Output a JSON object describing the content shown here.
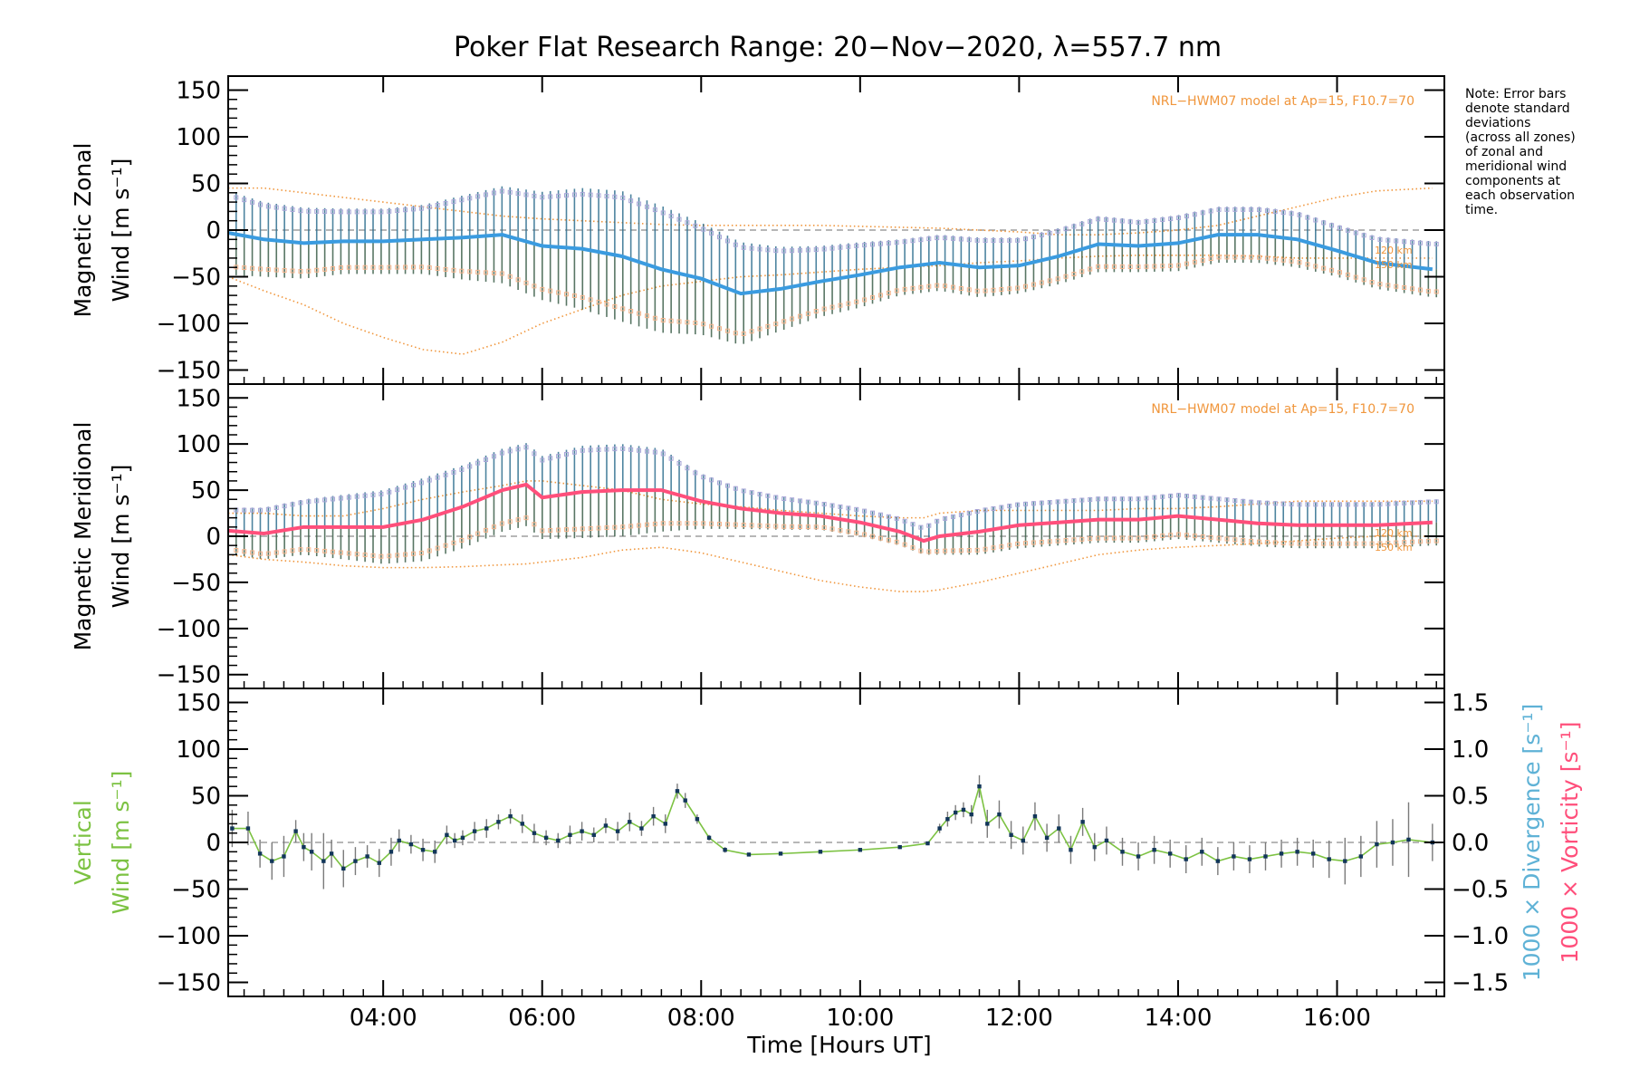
{
  "figure": {
    "title": "Poker Flat Research Range: 20−Nov−2020, λ=557.7 nm",
    "note_lines": [
      "Note: Error bars",
      "denote standard",
      "deviations",
      "(across all zones)",
      "of zonal and",
      "meridional wind",
      "components at",
      "each observation",
      "time."
    ],
    "xlabel": "Time [Hours UT]",
    "x_ticks": [
      "04:00",
      "06:00",
      "08:00",
      "10:00",
      "12:00",
      "14:00",
      "16:00"
    ],
    "x_tick_hours": [
      4,
      6,
      8,
      10,
      12,
      14,
      16
    ],
    "xlim_hours": [
      2.05,
      17.35
    ],
    "y_ticks": [
      "150",
      "100",
      "50",
      "0",
      "−50",
      "−100",
      "−150"
    ],
    "y_tick_values": [
      150,
      100,
      50,
      0,
      -50,
      -100,
      -150
    ],
    "right_ticks": [
      "1.5",
      "1.0",
      "0.5",
      "0.0",
      "−0.5",
      "−1.0",
      "−1.5"
    ],
    "right_tick_values": [
      1.5,
      1.0,
      0.5,
      0.0,
      -0.5,
      -1.0,
      -1.5
    ],
    "model_label": "NRL−HWM07 model at Ap=15, F10.7=70",
    "km_labels": [
      "120 km",
      "150 km"
    ]
  },
  "chart_data": [
    {
      "type": "line",
      "panel": "zonal",
      "ylabel_line1": "Magnetic Zonal",
      "ylabel_line2": "Wind [m s⁻¹]",
      "ylim": [
        -165,
        165
      ],
      "color": "#3a9be0",
      "error_color": "#1e3f6b",
      "x": [
        2.05,
        2.5,
        3.0,
        3.5,
        4.0,
        4.5,
        5.0,
        5.5,
        6.0,
        6.5,
        7.0,
        7.5,
        8.0,
        8.5,
        9.0,
        9.5,
        10.0,
        10.5,
        11.0,
        11.5,
        12.0,
        12.5,
        13.0,
        13.5,
        14.0,
        14.5,
        15.0,
        15.5,
        16.0,
        16.5,
        17.2
      ],
      "y": [
        -3,
        -10,
        -14,
        -12,
        -12,
        -10,
        -8,
        -5,
        -17,
        -20,
        -28,
        -42,
        -52,
        -68,
        -63,
        -55,
        -48,
        -40,
        -35,
        -40,
        -38,
        -28,
        -15,
        -17,
        -14,
        -5,
        -5,
        -10,
        -22,
        -35,
        -42
      ],
      "err": [
        45,
        40,
        38,
        35,
        35,
        37,
        45,
        52,
        58,
        65,
        70,
        68,
        60,
        55,
        45,
        38,
        35,
        30,
        30,
        32,
        30,
        30,
        30,
        28,
        30,
        30,
        30,
        30,
        28,
        28,
        30
      ],
      "model_upper": [
        45,
        45,
        40,
        35,
        30,
        25,
        20,
        15,
        12,
        10,
        8,
        6,
        5,
        5,
        5,
        5,
        4,
        3,
        2,
        0,
        -2,
        -5,
        -5,
        -3,
        0,
        5,
        15,
        25,
        35,
        42,
        45
      ],
      "model_lower": [
        -50,
        -65,
        -80,
        -100,
        -115,
        -128,
        -133,
        -120,
        -100,
        -85,
        -70,
        -60,
        -55,
        -50,
        -48,
        -45,
        -42,
        -40,
        -38,
        -35,
        -33,
        -30,
        -28,
        -27,
        -27,
        -27,
        -28,
        -30,
        -30,
        -30,
        -30
      ]
    },
    {
      "type": "line",
      "panel": "meridional",
      "ylabel_line1": "Magnetic Meridional",
      "ylabel_line2": "Wind [m s⁻¹]",
      "ylim": [
        -165,
        165
      ],
      "color": "#ff4f7b",
      "error_color": "#1e3f6b",
      "x": [
        2.05,
        2.5,
        3.0,
        3.5,
        4.0,
        4.5,
        5.0,
        5.5,
        5.8,
        6.0,
        6.5,
        7.0,
        7.5,
        8.0,
        8.5,
        9.0,
        9.5,
        10.0,
        10.5,
        10.8,
        11.0,
        11.5,
        12.0,
        12.5,
        13.0,
        13.5,
        14.0,
        14.5,
        15.0,
        15.5,
        16.0,
        16.5,
        17.2
      ],
      "y": [
        6,
        3,
        10,
        10,
        10,
        18,
        32,
        50,
        56,
        42,
        48,
        50,
        50,
        38,
        30,
        25,
        22,
        15,
        5,
        -5,
        0,
        5,
        12,
        15,
        18,
        18,
        22,
        18,
        14,
        12,
        12,
        12,
        15
      ],
      "err": [
        25,
        28,
        30,
        35,
        40,
        45,
        45,
        45,
        45,
        45,
        50,
        50,
        45,
        30,
        22,
        18,
        15,
        15,
        15,
        15,
        20,
        25,
        25,
        25,
        25,
        25,
        25,
        25,
        25,
        25,
        25,
        25,
        25
      ],
      "model_upper": [
        25,
        25,
        22,
        22,
        30,
        40,
        48,
        55,
        60,
        60,
        55,
        50,
        40,
        35,
        32,
        28,
        25,
        22,
        20,
        20,
        25,
        28,
        28,
        28,
        28,
        30,
        30,
        32,
        35,
        38,
        38,
        38,
        38
      ],
      "model_lower": [
        -20,
        -25,
        -28,
        -32,
        -34,
        -34,
        -33,
        -31,
        -30,
        -28,
        -23,
        -15,
        -12,
        -18,
        -28,
        -38,
        -48,
        -55,
        -60,
        -60,
        -58,
        -50,
        -40,
        -30,
        -20,
        -15,
        -12,
        -10,
        -8,
        -5,
        -2,
        0,
        0
      ]
    },
    {
      "type": "line",
      "panel": "vertical",
      "ylabel_line1": "Vertical",
      "ylabel_line2": "Wind [m s⁻¹]",
      "right_label_divergence": "1000 × Divergence [s⁻¹]",
      "right_label_vorticity": "1000 × Vorticity [s⁻¹]",
      "ylim": [
        -165,
        165
      ],
      "right_ylim": [
        -1.65,
        1.65
      ],
      "color": "#7cc242",
      "marker_color": "#12365a",
      "x": [
        2.1,
        2.3,
        2.45,
        2.6,
        2.75,
        2.9,
        3.0,
        3.1,
        3.25,
        3.35,
        3.5,
        3.65,
        3.8,
        3.95,
        4.1,
        4.2,
        4.35,
        4.5,
        4.65,
        4.8,
        4.9,
        5.0,
        5.15,
        5.3,
        5.45,
        5.6,
        5.75,
        5.9,
        6.05,
        6.2,
        6.35,
        6.5,
        6.65,
        6.8,
        6.95,
        7.1,
        7.25,
        7.4,
        7.55,
        7.7,
        7.8,
        7.95,
        8.1,
        8.3,
        8.6,
        9.0,
        9.5,
        10.0,
        10.5,
        10.85,
        11.0,
        11.1,
        11.2,
        11.3,
        11.4,
        11.5,
        11.6,
        11.75,
        11.9,
        12.05,
        12.2,
        12.35,
        12.5,
        12.65,
        12.8,
        12.95,
        13.1,
        13.3,
        13.5,
        13.7,
        13.9,
        14.1,
        14.3,
        14.5,
        14.7,
        14.9,
        15.1,
        15.3,
        15.5,
        15.7,
        15.9,
        16.1,
        16.3,
        16.5,
        16.7,
        16.9,
        17.2
      ],
      "y": [
        15,
        15,
        -12,
        -20,
        -15,
        12,
        -5,
        -10,
        -20,
        -12,
        -28,
        -20,
        -15,
        -22,
        -10,
        2,
        -2,
        -8,
        -10,
        8,
        2,
        5,
        12,
        15,
        22,
        28,
        20,
        10,
        5,
        2,
        8,
        12,
        8,
        18,
        12,
        22,
        15,
        28,
        20,
        55,
        45,
        25,
        5,
        -8,
        -13,
        -12,
        -10,
        -8,
        -5,
        -1,
        15,
        25,
        32,
        35,
        30,
        60,
        20,
        30,
        8,
        2,
        28,
        5,
        15,
        -8,
        22,
        -5,
        2,
        -10,
        -15,
        -8,
        -12,
        -18,
        -10,
        -20,
        -15,
        -18,
        -15,
        -12,
        -10,
        -12,
        -18,
        -20,
        -15,
        -2,
        0,
        3,
        0
      ],
      "err": [
        20,
        18,
        15,
        20,
        22,
        12,
        15,
        20,
        30,
        15,
        20,
        15,
        12,
        15,
        15,
        12,
        10,
        12,
        12,
        10,
        8,
        8,
        10,
        10,
        8,
        8,
        10,
        10,
        8,
        8,
        10,
        10,
        8,
        8,
        10,
        10,
        8,
        10,
        10,
        8,
        8,
        5,
        3,
        3,
        2,
        2,
        2,
        2,
        2,
        2,
        5,
        8,
        8,
        8,
        10,
        12,
        15,
        15,
        15,
        15,
        15,
        15,
        15,
        15,
        15,
        15,
        15,
        15,
        15,
        15,
        15,
        15,
        15,
        15,
        15,
        15,
        15,
        15,
        15,
        15,
        20,
        25,
        22,
        25,
        25,
        40,
        20
      ]
    }
  ]
}
